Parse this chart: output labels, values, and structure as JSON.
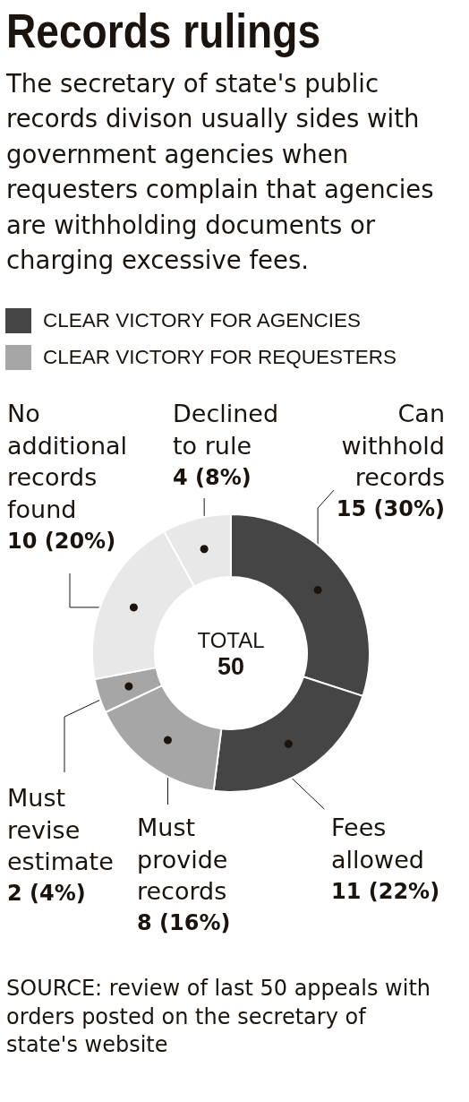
{
  "chart_data": {
    "type": "donut",
    "title": "Records rulings",
    "subtitle": "The secretary of state's public records divison usually sides with government agencies when requesters complain that agencies are withholding documents or charging excessive fees.",
    "categories": [
      "Can withhold records",
      "Fees allowed",
      "Must provide records",
      "Must revise estimate",
      "No additional records found",
      "Declined to rule"
    ],
    "values": [
      15,
      11,
      8,
      2,
      10,
      4
    ],
    "colors": [
      "#454545",
      "#454545",
      "#a6a6a6",
      "#a6a6a6",
      "#e8e8e8",
      "#e8e8e8"
    ],
    "value_labels": [
      "15 (30%)",
      "11 (22%)",
      "8 (16%)",
      "2 (4%)",
      "10 (20%)",
      "4 (8%)"
    ],
    "annotations": [
      "CLEAR VICTORY FOR AGENCIES",
      "CLEAR VICTORY FOR REQUESTERS",
      "TOTAL",
      "50",
      "SOURCE: review of last 50 appeals with orders posted on the secretary of state's website"
    ]
  }
}
